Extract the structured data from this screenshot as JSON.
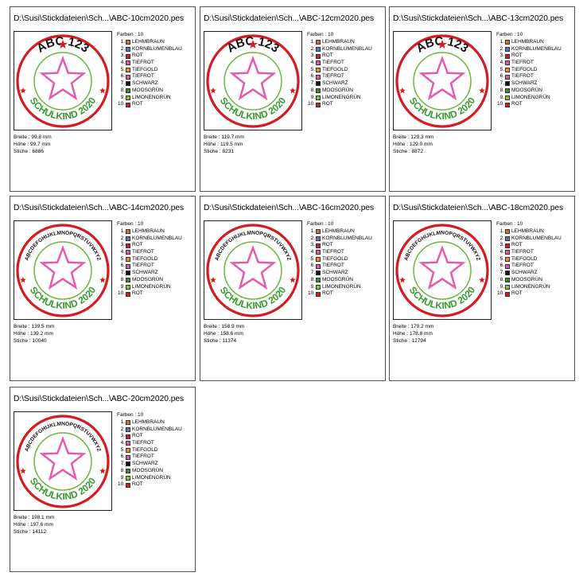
{
  "colors": {
    "palette": [
      {
        "num": "1.",
        "name": "LEHMBRAUN",
        "hex": "#c8742c"
      },
      {
        "num": "2.",
        "name": "KORNBLUMENBLAU",
        "hex": "#5a78b0"
      },
      {
        "num": "3.",
        "name": "ROT",
        "hex": "#d61a22"
      },
      {
        "num": "4.",
        "name": "TIEFROT",
        "hex": "#e85a94"
      },
      {
        "num": "5.",
        "name": "TIEFGOLD",
        "hex": "#f08a2c"
      },
      {
        "num": "6.",
        "name": "TIEFROT",
        "hex": "#e05aa0"
      },
      {
        "num": "7.",
        "name": "SCHWARZ",
        "hex": "#111111"
      },
      {
        "num": "8.",
        "name": "MOOSGRÜN",
        "hex": "#3a8a30"
      },
      {
        "num": "9.",
        "name": "LIMONENGRÜN",
        "hex": "#7fc246"
      },
      {
        "num": "10.",
        "name": "ROT",
        "hex": "#d61a22"
      }
    ],
    "ring_red": "#d61a22",
    "ring_green": "#6aba3e",
    "star_pink": "#e65aa8",
    "text_green": "#3a9a30",
    "text_black": "#111111"
  },
  "cards": [
    {
      "path": "D:\\Susi\\Stickdateien\\Sch...\\ABC-10cm2020.pes",
      "farben": "Farben : 10",
      "breite": "Breite : 99.8 mm",
      "hoehe": "Höhe : 99.7 mm",
      "stiche": "Stiche : 6886",
      "top_text": "ABC 123",
      "bottom_text": "SCHULKIND 2020",
      "variant": "abc123"
    },
    {
      "path": "D:\\Susi\\Stickdateien\\Sch...\\ABC-12cm2020.pes",
      "farben": "Farben : 10",
      "breite": "Breite : 119.7 mm",
      "hoehe": "Höhe : 119.5 mm",
      "stiche": "Stiche : 8231",
      "top_text": "ABC 123",
      "bottom_text": "SCHULKIND 2020",
      "variant": "abc123"
    },
    {
      "path": "D:\\Susi\\Stickdateien\\Sch...\\ABC-13cm2020.pes",
      "farben": "Farben : 10",
      "breite": "Breite : 129.3 mm",
      "hoehe": "Höhe : 129.0 mm",
      "stiche": "Stiche : 8872",
      "top_text": "ABC 123",
      "bottom_text": "SCHULKIND 2020",
      "variant": "abc123"
    },
    {
      "path": "D:\\Susi\\Stickdateien\\Sch...\\ABC-14cm2020.pes",
      "farben": "Farben : 10",
      "breite": "Breite : 139.5 mm",
      "hoehe": "Höhe : 139.2 mm",
      "stiche": "Stiche : 10040",
      "top_text": "ABCDEFGHIJKLMNOPQRSTUVWXYZ",
      "bottom_text": "SCHULKIND 2020",
      "variant": "alphabet"
    },
    {
      "path": "D:\\Susi\\Stickdateien\\Sch...\\ABC-16cm2020.pes",
      "farben": "Farben : 10",
      "breite": "Breite : 158.9 mm",
      "hoehe": "Höhe : 158.6 mm",
      "stiche": "Stiche : 11374",
      "top_text": "ABCDEFGHIJKLMNOPQRSTUVWXYZ",
      "bottom_text": "SCHULKIND 2020",
      "variant": "alphabet"
    },
    {
      "path": "D:\\Susi\\Stickdateien\\Sch...\\ABC-18cm2020.pes",
      "farben": "Farben : 10",
      "breite": "Breite : 179.2 mm",
      "hoehe": "Höhe : 178.8 mm",
      "stiche": "Stiche : 12794",
      "top_text": "ABCDEFGHIJKLMNOPQRSTUVWXYZ",
      "bottom_text": "SCHULKIND 2020",
      "variant": "alphabet"
    },
    {
      "path": "D:\\Susi\\Stickdateien\\Sch...\\ABC-20cm2020.pes",
      "farben": "Farben : 10",
      "breite": "Breite : 198.1 mm",
      "hoehe": "Höhe : 197.6 mm",
      "stiche": "Stiche : 14112",
      "top_text": "ABCDEFGHIJKLMNOPQRSTUVWXYZ",
      "bottom_text": "SCHULKIND 2020",
      "variant": "alphabet"
    }
  ]
}
